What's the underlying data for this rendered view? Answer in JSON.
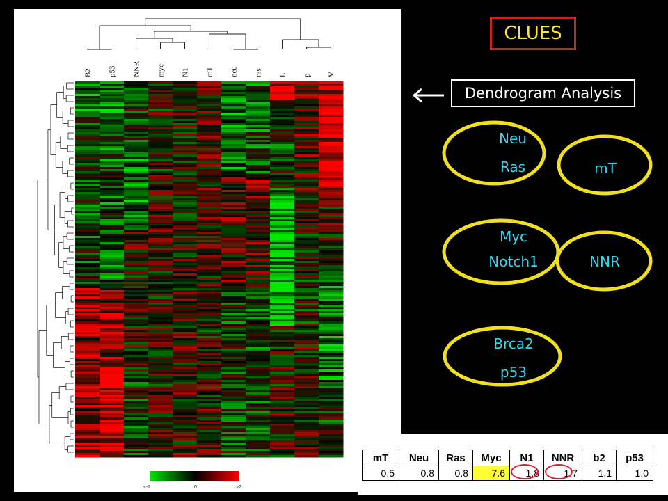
{
  "slide": {
    "title": "CLUES",
    "callout": "Dendrogram Analysis",
    "colors": {
      "background": "#000000",
      "title_text": "#ffe23a",
      "title_border": "#d42020",
      "ellipse_outline": "#f0e020",
      "ellipse_text": "#34d7f0",
      "highlight_cell": "#ffff33",
      "circle_mark": "#e01c2a"
    }
  },
  "heatmap": {
    "column_labels": [
      "B2",
      "p53",
      "NNR",
      "myc",
      "N1",
      "mT",
      "neu",
      "ras",
      "L",
      "p",
      "V"
    ],
    "scale": {
      "low_label": "<-2",
      "mid_label": "0",
      "high_label": ">2",
      "low_color": "#00e000",
      "mid_color": "#000000",
      "high_color": "#ff0000"
    }
  },
  "clusters": [
    {
      "items": [
        "Neu",
        "Ras",
        "mT"
      ]
    },
    {
      "items": [
        "Myc",
        "Notch1",
        "NNR"
      ]
    },
    {
      "items": [
        "Brca2",
        "p53"
      ]
    }
  ],
  "summary_table": {
    "headers": [
      "mT",
      "Neu",
      "Ras",
      "Myc",
      "N1",
      "NNR",
      "b2",
      "p53"
    ],
    "values": [
      "0.5",
      "0.8",
      "0.8",
      "7.6",
      "1.8",
      "1.7",
      "1.1",
      "1.0"
    ],
    "highlighted_column": "Myc",
    "circled_columns": [
      "N1",
      "NNR"
    ]
  }
}
